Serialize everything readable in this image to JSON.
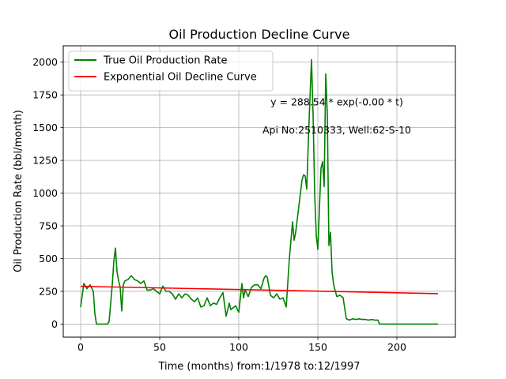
{
  "chart_data": {
    "type": "line",
    "title": "Oil Production Decline Curve",
    "xlabel": "Time (months) from:1/1978 to:12/1997",
    "ylabel": "Oil Production Rate (bbl/month)",
    "xlim": [
      -11,
      237
    ],
    "ylim": [
      -100,
      2125
    ],
    "xticks": [
      0,
      50,
      100,
      150,
      200
    ],
    "yticks": [
      0,
      250,
      500,
      750,
      1000,
      1250,
      1500,
      1750,
      2000
    ],
    "grid": true,
    "legend": "upper-left",
    "annotations": [
      {
        "text": "y = 288.54 * exp(-0.00 * t)",
        "x": 162,
        "y": 1670
      },
      {
        "text": "Api No:2510333, Well:62-S-10",
        "x": 162,
        "y": 1455
      }
    ],
    "series": [
      {
        "name": "True Oil Production Rate",
        "color": "#008000",
        "x": [
          0,
          2,
          4,
          6,
          8,
          9,
          10,
          12,
          14,
          16,
          17,
          18,
          20,
          21,
          22,
          23,
          24,
          25,
          26,
          27,
          28,
          30,
          32,
          34,
          36,
          38,
          40,
          42,
          44,
          46,
          48,
          50,
          52,
          54,
          56,
          58,
          60,
          62,
          64,
          66,
          68,
          70,
          72,
          74,
          76,
          78,
          80,
          82,
          84,
          86,
          88,
          90,
          92,
          94,
          95,
          96,
          98,
          100,
          102,
          103,
          104,
          106,
          108,
          110,
          112,
          114,
          116,
          117,
          118,
          120,
          122,
          124,
          126,
          128,
          130,
          132,
          134,
          135,
          136,
          138,
          140,
          141,
          142,
          143,
          144,
          145,
          146,
          147,
          148,
          149,
          150,
          152,
          153,
          154,
          155,
          156,
          157,
          158,
          159,
          160,
          162,
          164,
          166,
          168,
          170,
          172,
          174,
          176,
          178,
          180,
          182,
          184,
          186,
          188,
          189,
          190,
          200,
          210,
          220,
          226
        ],
        "y": [
          130,
          310,
          270,
          300,
          250,
          80,
          0,
          0,
          0,
          0,
          0,
          20,
          300,
          480,
          580,
          400,
          330,
          280,
          100,
          300,
          330,
          340,
          370,
          340,
          330,
          310,
          330,
          260,
          260,
          270,
          250,
          230,
          290,
          250,
          250,
          230,
          190,
          230,
          200,
          230,
          220,
          190,
          170,
          200,
          130,
          140,
          200,
          140,
          160,
          150,
          200,
          240,
          60,
          160,
          110,
          120,
          140,
          90,
          310,
          200,
          260,
          210,
          280,
          300,
          300,
          270,
          350,
          370,
          360,
          220,
          200,
          230,
          190,
          200,
          130,
          500,
          780,
          640,
          700,
          900,
          1100,
          1140,
          1130,
          1030,
          1400,
          1720,
          2020,
          1600,
          1000,
          680,
          570,
          1190,
          1240,
          1050,
          1910,
          1600,
          600,
          700,
          400,
          300,
          210,
          220,
          200,
          40,
          30,
          40,
          35,
          40,
          35,
          35,
          30,
          35,
          30,
          30,
          0,
          0,
          0,
          0,
          0,
          0
        ]
      },
      {
        "name": "Exponential Oil Decline Curve",
        "color": "#ff0000",
        "x": [
          0,
          226
        ],
        "y": [
          288.54,
          232
        ]
      }
    ]
  }
}
